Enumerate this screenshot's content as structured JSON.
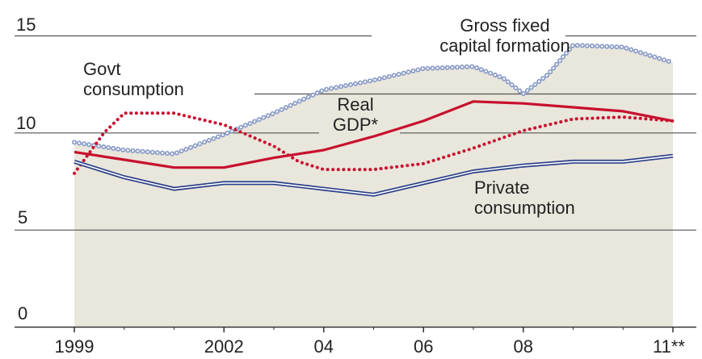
{
  "chart_data": {
    "type": "line",
    "title": "",
    "xlabel": "",
    "ylabel": "",
    "ylim": [
      0,
      15
    ],
    "xlim": [
      1999,
      2011
    ],
    "grid": "horizontal",
    "y_ticks": [
      {
        "value": 0,
        "label": "0"
      },
      {
        "value": 5,
        "label": "5"
      },
      {
        "value": 10,
        "label": "10"
      },
      {
        "value": 15,
        "label": "15"
      }
    ],
    "x_ticks": [
      {
        "value": 1999,
        "label": "1999"
      },
      {
        "value": 2002,
        "label": "2002"
      },
      {
        "value": 2004,
        "label": "04"
      },
      {
        "value": 2006,
        "label": "06"
      },
      {
        "value": 2008,
        "label": "08"
      },
      {
        "value": 2011,
        "label": "11**"
      }
    ],
    "series": [
      {
        "name": "Gross fixed capital formation",
        "label_lines": [
          "Gross fixed",
          "capital formation"
        ],
        "style": "hollow-dots",
        "color": "#8a9cc8",
        "area_fill": "#e9e6dc",
        "x": [
          1999,
          2000,
          2001,
          2002,
          2003,
          2004,
          2005,
          2006,
          2007,
          2007.6,
          2008,
          2008.5,
          2009,
          2010,
          2011
        ],
        "values": [
          9.5,
          9.1,
          8.9,
          9.9,
          11.0,
          12.2,
          12.7,
          13.3,
          13.4,
          12.8,
          12.0,
          13.0,
          14.5,
          14.4,
          13.6
        ]
      },
      {
        "name": "Real GDP*",
        "label_lines": [
          "Real",
          "GDP*"
        ],
        "style": "solid",
        "color": "#c8102e",
        "x": [
          1999,
          2000,
          2001,
          2002,
          2003,
          2004,
          2005,
          2006,
          2007,
          2008,
          2009,
          2010,
          2011
        ],
        "values": [
          9.0,
          8.6,
          8.2,
          8.2,
          8.7,
          9.1,
          9.8,
          10.6,
          11.6,
          11.5,
          11.3,
          11.1,
          10.6
        ]
      },
      {
        "name": "Govt consumption",
        "label_lines": [
          "Govt",
          "consumption"
        ],
        "style": "dotted",
        "color": "#c8102e",
        "x": [
          1999,
          1999.6,
          2000,
          2001,
          2002,
          2003,
          2003.5,
          2004,
          2005,
          2006,
          2007,
          2008,
          2009,
          2010,
          2011
        ],
        "values": [
          7.9,
          10.0,
          11.0,
          11.0,
          10.4,
          9.3,
          8.5,
          8.1,
          8.1,
          8.4,
          9.2,
          10.1,
          10.7,
          10.8,
          10.6
        ]
      },
      {
        "name": "Private consumption",
        "label_lines": [
          "Private",
          "consumption"
        ],
        "style": "double-line",
        "color": "#2a3f88",
        "x": [
          1999,
          2000,
          2001,
          2002,
          2003,
          2004,
          2005,
          2006,
          2007,
          2008,
          2009,
          2010,
          2011
        ],
        "values": [
          8.5,
          7.7,
          7.1,
          7.4,
          7.4,
          7.1,
          6.8,
          7.4,
          8.0,
          8.3,
          8.5,
          8.5,
          8.8
        ]
      }
    ]
  }
}
